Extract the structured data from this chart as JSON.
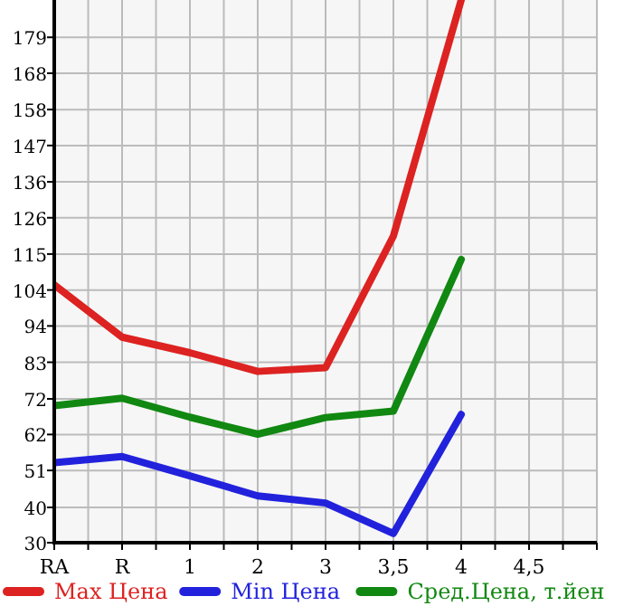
{
  "chart_data": {
    "type": "line",
    "categories": [
      "RA",
      "R",
      "1",
      "2",
      "3",
      "3,5",
      "4",
      "4,5"
    ],
    "series": [
      {
        "name": "Max Цена",
        "color": "#dd2222",
        "values": [
          106,
          90.6,
          86,
          80.5,
          81.6,
          120.4,
          190,
          null
        ]
      },
      {
        "name": "Min Цена",
        "color": "#2222dd",
        "values": [
          53.6,
          55.4,
          49.7,
          43.8,
          41.7,
          32.7,
          67.8,
          null
        ]
      },
      {
        "name": "Сред.Цена, т.йен",
        "color": "#118811",
        "values": [
          70.4,
          72.6,
          67,
          62,
          66.9,
          68.8,
          113.5,
          null
        ]
      }
    ],
    "ylim": [
      30,
      190
    ],
    "yticks": [
      {
        "value": 30,
        "label": "30"
      },
      {
        "value": 40.4,
        "label": "40"
      },
      {
        "value": 51.3,
        "label": "51"
      },
      {
        "value": 61.9,
        "label": "62"
      },
      {
        "value": 72.4,
        "label": "72"
      },
      {
        "value": 83.2,
        "label": "83"
      },
      {
        "value": 93.9,
        "label": "94"
      },
      {
        "value": 104.5,
        "label": "104"
      },
      {
        "value": 115.1,
        "label": "115"
      },
      {
        "value": 125.8,
        "label": "126"
      },
      {
        "value": 136.4,
        "label": "136"
      },
      {
        "value": 147.1,
        "label": "147"
      },
      {
        "value": 157.7,
        "label": "158"
      },
      {
        "value": 168.4,
        "label": "168"
      },
      {
        "value": 179,
        "label": "179"
      }
    ],
    "grid": true,
    "legend": "bottom",
    "marker": "none",
    "line_style": "solid"
  }
}
